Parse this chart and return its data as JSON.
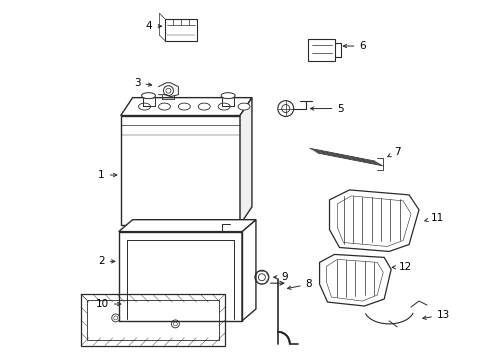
{
  "background_color": "#ffffff",
  "line_color": "#2a2a2a",
  "label_color": "#000000",
  "fig_width": 4.89,
  "fig_height": 3.6,
  "dpi": 100,
  "label_fontsize": 7.5
}
